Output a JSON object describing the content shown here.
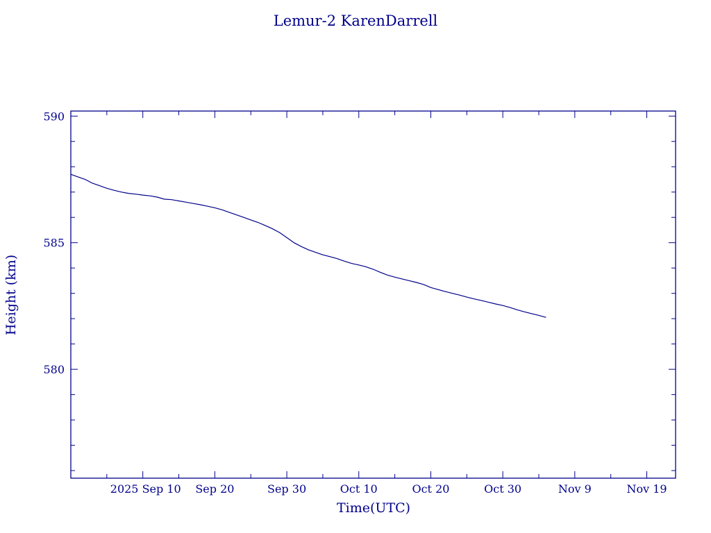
{
  "chart_data": {
    "type": "line",
    "title": "Lemur-2 KarenDarrell",
    "xlabel": "Time(UTC)",
    "ylabel": "Height (km)",
    "x_tick_labels": [
      "2025 Sep 10",
      "Sep 20",
      "Sep 30",
      "Oct 10",
      "Oct 20",
      "Oct 30",
      "Nov  9",
      "Nov 19"
    ],
    "x_tick_dates": [
      "2025-09-10",
      "2025-09-20",
      "2025-09-30",
      "2025-10-10",
      "2025-10-20",
      "2025-10-30",
      "2025-11-09",
      "2025-11-19"
    ],
    "xlim": [
      "2025-08-31",
      "2025-11-23"
    ],
    "y_tick_labels": [
      "580",
      "585",
      "590"
    ],
    "y_ticks": [
      580,
      585,
      590
    ],
    "ylim": [
      575.7,
      590.2
    ],
    "grid": false,
    "series": [
      {
        "x": [
          "2025-08-31",
          "2025-09-01",
          "2025-09-02",
          "2025-09-03",
          "2025-09-04",
          "2025-09-05",
          "2025-09-06",
          "2025-09-07",
          "2025-09-08",
          "2025-09-09",
          "2025-09-10",
          "2025-09-11",
          "2025-09-12",
          "2025-09-13",
          "2025-09-14",
          "2025-09-15",
          "2025-09-16",
          "2025-09-17",
          "2025-09-18",
          "2025-09-19",
          "2025-09-20",
          "2025-09-21",
          "2025-09-22",
          "2025-09-23",
          "2025-09-24",
          "2025-09-25",
          "2025-09-26",
          "2025-09-27",
          "2025-09-28",
          "2025-09-29",
          "2025-09-30",
          "2025-10-01",
          "2025-10-02",
          "2025-10-03",
          "2025-10-04",
          "2025-10-05",
          "2025-10-06",
          "2025-10-07",
          "2025-10-08",
          "2025-10-09",
          "2025-10-10",
          "2025-10-11",
          "2025-10-12",
          "2025-10-13",
          "2025-10-14",
          "2025-10-15",
          "2025-10-16",
          "2025-10-17",
          "2025-10-18",
          "2025-10-19",
          "2025-10-20",
          "2025-10-21",
          "2025-10-22",
          "2025-10-23",
          "2025-10-24",
          "2025-10-25",
          "2025-10-26",
          "2025-10-27",
          "2025-10-28",
          "2025-10-29",
          "2025-10-30",
          "2025-10-31",
          "2025-11-01",
          "2025-11-02",
          "2025-11-03",
          "2025-11-04",
          "2025-11-05"
        ],
        "y": [
          587.7,
          587.6,
          587.5,
          587.35,
          587.25,
          587.15,
          587.07,
          587.0,
          586.95,
          586.92,
          586.88,
          586.85,
          586.8,
          586.72,
          586.7,
          586.65,
          586.6,
          586.55,
          586.5,
          586.44,
          586.38,
          586.3,
          586.2,
          586.1,
          586.0,
          585.9,
          585.8,
          585.68,
          585.55,
          585.4,
          585.2,
          585.0,
          584.85,
          584.72,
          584.62,
          584.52,
          584.45,
          584.37,
          584.27,
          584.18,
          584.12,
          584.05,
          583.95,
          583.83,
          583.72,
          583.64,
          583.57,
          583.5,
          583.43,
          583.35,
          583.23,
          583.15,
          583.07,
          583.0,
          582.93,
          582.85,
          582.78,
          582.72,
          582.65,
          582.58,
          582.52,
          582.44,
          582.35,
          582.27,
          582.2,
          582.13,
          582.05
        ]
      }
    ]
  }
}
